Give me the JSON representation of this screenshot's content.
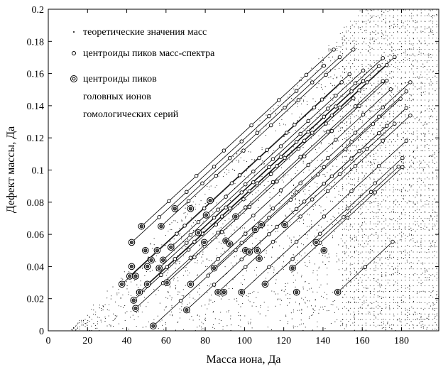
{
  "chart_data": {
    "type": "scatter",
    "title": "",
    "xlabel": "Масса иона, Да",
    "ylabel": "Дефект массы, Да",
    "xlim": [
      0,
      199
    ],
    "ylim": [
      0,
      0.2
    ],
    "grid": false,
    "legend_placement": "top-left",
    "x_ticks": [
      0,
      20,
      40,
      60,
      80,
      100,
      120,
      140,
      160,
      180
    ],
    "y_ticks": [
      0,
      0.02,
      0.04,
      0.06,
      0.08,
      0.1,
      0.12,
      0.14,
      0.16,
      0.18,
      0.2
    ],
    "x_tick_labels": [
      "0",
      "20",
      "40",
      "60",
      "80",
      "100",
      "120",
      "140",
      "160",
      "180"
    ],
    "y_tick_labels": [
      "0",
      "0.02",
      "0.04",
      "0.06",
      "0.08",
      "0.1",
      "0.12",
      "0.14",
      "0.16",
      "0.18",
      "0.2"
    ],
    "legend": [
      {
        "marker": "dot",
        "label": "теоретические значения масс"
      },
      {
        "marker": "small-circle",
        "label": "центроиды пиков масс-спектра"
      },
      {
        "marker": "double-circle",
        "label": "центроиды пиков",
        "label_lines": [
          "центроиды пиков",
          "головных ионов",
          "гомологических  серий"
        ]
      }
    ],
    "series": [
      {
        "name": "теоретические значения масс",
        "marker": "dot",
        "density_description": "dense cloud of dots filling the wedge between lines y≈0.0015·x−0.02 (upper bound) and y=0; strongly concentrated above mass 150"
      },
      {
        "name": "центроиды пиков головных ионов гомологических серий",
        "marker": "double-circle",
        "points": [
          [
            37.5,
            0.029
          ],
          [
            41.5,
            0.034
          ],
          [
            42.5,
            0.04
          ],
          [
            43.5,
            0.019
          ],
          [
            44.5,
            0.014
          ],
          [
            44.5,
            0.034
          ],
          [
            46.5,
            0.024
          ],
          [
            50.5,
            0.029
          ],
          [
            53.5,
            0.003
          ],
          [
            56.5,
            0.039
          ],
          [
            58.5,
            0.044
          ],
          [
            42.5,
            0.055
          ],
          [
            44.5,
            0.034
          ],
          [
            47.5,
            0.065
          ],
          [
            49.5,
            0.05
          ],
          [
            50.5,
            0.04
          ],
          [
            52.5,
            0.044
          ],
          [
            55.5,
            0.05
          ],
          [
            57.5,
            0.065
          ],
          [
            60.5,
            0.03
          ],
          [
            62.5,
            0.052
          ],
          [
            64.5,
            0.076
          ],
          [
            70.5,
            0.013
          ],
          [
            72.5,
            0.029
          ],
          [
            76.5,
            0.061
          ],
          [
            79.5,
            0.055
          ],
          [
            80.5,
            0.072
          ],
          [
            84.5,
            0.039
          ],
          [
            86.5,
            0.024
          ],
          [
            89.5,
            0.024
          ],
          [
            90.5,
            0.056
          ],
          [
            92.5,
            0.054
          ],
          [
            95.5,
            0.071
          ],
          [
            98.5,
            0.024
          ],
          [
            100.5,
            0.05
          ],
          [
            102.5,
            0.049
          ],
          [
            105.5,
            0.063
          ],
          [
            106.5,
            0.05
          ],
          [
            107.5,
            0.045
          ],
          [
            108.5,
            0.066
          ],
          [
            110.5,
            0.029
          ],
          [
            120.5,
            0.066
          ],
          [
            124.5,
            0.039
          ],
          [
            126.5,
            0.024
          ],
          [
            136.5,
            0.055
          ],
          [
            140.5,
            0.05
          ],
          [
            147.5,
            0.024
          ],
          [
            72.5,
            0.076
          ],
          [
            82.5,
            0.081
          ]
        ]
      },
      {
        "name": "центроиды пиков масс-спектра",
        "marker": "small-circle",
        "homologous_series": [
          {
            "start": [
              37.5,
              0.029
            ],
            "step_x": 14,
            "step_y": 0.0157,
            "count": 9
          },
          {
            "start": [
              41.5,
              0.034
            ],
            "step_x": 14,
            "step_y": 0.0157,
            "count": 9
          },
          {
            "start": [
              43.5,
              0.019
            ],
            "step_x": 14,
            "step_y": 0.0157,
            "count": 9
          },
          {
            "start": [
              44.5,
              0.014
            ],
            "step_x": 14,
            "step_y": 0.0157,
            "count": 10
          },
          {
            "start": [
              46.5,
              0.024
            ],
            "step_x": 14,
            "step_y": 0.0157,
            "count": 10
          },
          {
            "start": [
              50.5,
              0.029
            ],
            "step_x": 14,
            "step_y": 0.0157,
            "count": 10
          },
          {
            "start": [
              53.5,
              0.003
            ],
            "step_x": 14,
            "step_y": 0.0157,
            "count": 10
          },
          {
            "start": [
              56.5,
              0.039
            ],
            "step_x": 14,
            "step_y": 0.0157,
            "count": 9
          },
          {
            "start": [
              58.5,
              0.044
            ],
            "step_x": 14,
            "step_y": 0.0157,
            "count": 9
          },
          {
            "start": [
              60.5,
              0.03
            ],
            "step_x": 14,
            "step_y": 0.0157,
            "count": 9
          },
          {
            "start": [
              62.5,
              0.052
            ],
            "step_x": 14,
            "step_y": 0.0157,
            "count": 8
          },
          {
            "start": [
              70.5,
              0.013
            ],
            "step_x": 14,
            "step_y": 0.0157,
            "count": 9
          },
          {
            "start": [
              72.5,
              0.029
            ],
            "step_x": 14,
            "step_y": 0.0157,
            "count": 9
          },
          {
            "start": [
              84.5,
              0.039
            ],
            "step_x": 14,
            "step_y": 0.0157,
            "count": 8
          },
          {
            "start": [
              86.5,
              0.024
            ],
            "step_x": 14,
            "step_y": 0.0157,
            "count": 8
          },
          {
            "start": [
              98.5,
              0.024
            ],
            "step_x": 14,
            "step_y": 0.0157,
            "count": 7
          },
          {
            "start": [
              110.5,
              0.029
            ],
            "step_x": 14,
            "step_y": 0.0157,
            "count": 6
          },
          {
            "start": [
              124.5,
              0.039
            ],
            "step_x": 14,
            "step_y": 0.0157,
            "count": 5
          },
          {
            "start": [
              147.5,
              0.024
            ],
            "step_x": 14,
            "step_y": 0.0157,
            "count": 3
          },
          {
            "start": [
              42.5,
              0.055
            ],
            "step_x": 14,
            "step_y": 0.0157,
            "count": 8
          },
          {
            "start": [
              47.5,
              0.065
            ],
            "step_x": 14,
            "step_y": 0.0157,
            "count": 8
          },
          {
            "start": [
              57.5,
              0.065
            ],
            "step_x": 14,
            "step_y": 0.0157,
            "count": 8
          },
          {
            "start": [
              64.5,
              0.076
            ],
            "step_x": 14,
            "step_y": 0.0157,
            "count": 7
          },
          {
            "start": [
              76.5,
              0.061
            ],
            "step_x": 14,
            "step_y": 0.0157,
            "count": 7
          },
          {
            "start": [
              90.5,
              0.056
            ],
            "step_x": 14,
            "step_y": 0.0157,
            "count": 7
          },
          {
            "start": [
              102.5,
              0.049
            ],
            "step_x": 14,
            "step_y": 0.0157,
            "count": 6
          },
          {
            "start": [
              120.5,
              0.066
            ],
            "step_x": 14,
            "step_y": 0.0157,
            "count": 5
          },
          {
            "start": [
              136.5,
              0.055
            ],
            "step_x": 14,
            "step_y": 0.0157,
            "count": 4
          }
        ]
      }
    ],
    "colors": {
      "ink": "#000000",
      "background": "#ffffff"
    }
  }
}
